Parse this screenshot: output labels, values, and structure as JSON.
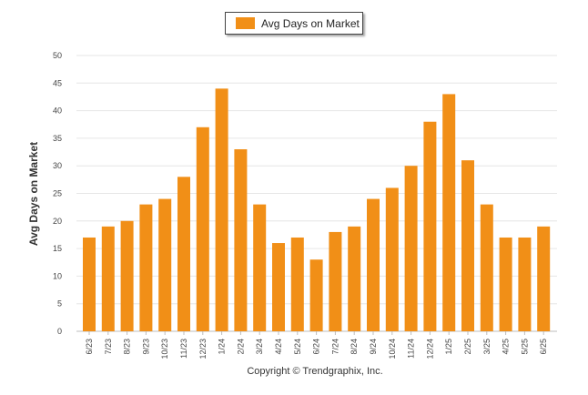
{
  "legend": {
    "label": "Avg Days on Market"
  },
  "footer": {
    "copyright": "Copyright © Trendgraphix, Inc."
  },
  "colors": {
    "bar": "#f18f17",
    "grid": "#e6e6e6",
    "axis": "#bdbdbd"
  },
  "chart_data": {
    "type": "bar",
    "ylabel": "Avg Days on Market",
    "ylim": [
      0,
      50
    ],
    "yticks": [
      0,
      5,
      10,
      15,
      20,
      25,
      30,
      35,
      40,
      45,
      50
    ],
    "grid": true,
    "legend_position": "top-center",
    "categories": [
      "6/23",
      "7/23",
      "8/23",
      "9/23",
      "10/23",
      "11/23",
      "12/23",
      "1/24",
      "2/24",
      "3/24",
      "4/24",
      "5/24",
      "6/24",
      "7/24",
      "8/24",
      "9/24",
      "10/24",
      "11/24",
      "12/24",
      "1/25",
      "2/25",
      "3/25",
      "4/25",
      "5/25",
      "6/25"
    ],
    "series": [
      {
        "name": "Avg Days on Market",
        "values": [
          17,
          19,
          20,
          23,
          24,
          28,
          37,
          44,
          33,
          23,
          16,
          17,
          13,
          18,
          19,
          24,
          26,
          30,
          38,
          43,
          31,
          23,
          17,
          17,
          19
        ]
      }
    ]
  }
}
